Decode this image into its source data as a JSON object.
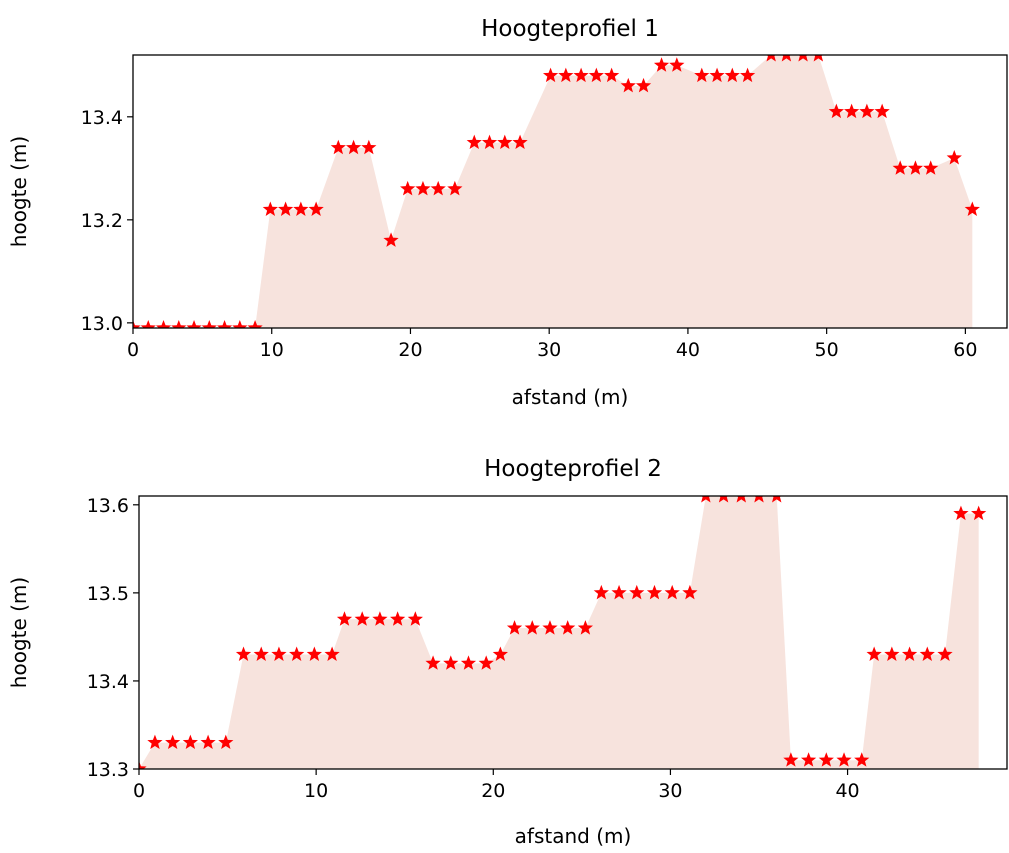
{
  "chart_data": [
    {
      "type": "area",
      "title": "Hoogteprofiel 1",
      "xlabel": "afstand (m)",
      "ylabel": "hoogte (m)",
      "xlim": [
        0,
        63
      ],
      "ylim": [
        12.99,
        13.52
      ],
      "xticks": [
        0,
        10,
        20,
        30,
        40,
        50,
        60
      ],
      "yticks": [
        13.0,
        13.2,
        13.4
      ],
      "ytick_labels": [
        "13.0",
        "13.2",
        "13.4"
      ],
      "marker": "star",
      "colors": {
        "marker": "#ff0000",
        "fill": "#f7e3dd",
        "axes": "#000000"
      },
      "x": [
        0,
        1.1,
        2.2,
        3.3,
        4.4,
        5.5,
        6.6,
        7.7,
        8.8,
        9.9,
        11.0,
        12.1,
        13.2,
        14.8,
        15.9,
        17.0,
        18.6,
        19.8,
        20.9,
        22.0,
        23.2,
        24.6,
        25.7,
        26.8,
        27.9,
        30.1,
        31.2,
        32.3,
        33.4,
        34.5,
        35.7,
        36.8,
        38.1,
        39.2,
        41.0,
        42.1,
        43.2,
        44.3,
        46.0,
        47.1,
        48.3,
        49.4,
        50.7,
        51.8,
        52.9,
        54.0,
        55.3,
        56.4,
        57.5,
        59.2,
        60.5
      ],
      "y": [
        12.99,
        12.99,
        12.99,
        12.99,
        12.99,
        12.99,
        12.99,
        12.99,
        12.99,
        13.22,
        13.22,
        13.22,
        13.22,
        13.34,
        13.34,
        13.34,
        13.16,
        13.26,
        13.26,
        13.26,
        13.26,
        13.35,
        13.35,
        13.35,
        13.35,
        13.48,
        13.48,
        13.48,
        13.48,
        13.48,
        13.46,
        13.46,
        13.5,
        13.5,
        13.48,
        13.48,
        13.48,
        13.48,
        13.52,
        13.52,
        13.52,
        13.52,
        13.41,
        13.41,
        13.41,
        13.41,
        13.3,
        13.3,
        13.3,
        13.32,
        13.22
      ]
    },
    {
      "type": "area",
      "title": "Hoogteprofiel 2",
      "xlabel": "afstand (m)",
      "ylabel": "hoogte (m)",
      "xlim": [
        0,
        49
      ],
      "ylim": [
        13.3,
        13.61
      ],
      "xticks": [
        0,
        10,
        20,
        30,
        40
      ],
      "yticks": [
        13.3,
        13.4,
        13.5,
        13.6
      ],
      "ytick_labels": [
        "13.3",
        "13.4",
        "13.5",
        "13.6"
      ],
      "marker": "star",
      "colors": {
        "marker": "#ff0000",
        "fill": "#f7e3dd",
        "axes": "#000000"
      },
      "x": [
        0,
        0.9,
        1.9,
        2.9,
        3.9,
        4.9,
        5.9,
        6.9,
        7.9,
        8.9,
        9.9,
        10.9,
        11.6,
        12.6,
        13.6,
        14.6,
        15.6,
        16.6,
        17.6,
        18.6,
        19.6,
        20.4,
        21.2,
        22.2,
        23.2,
        24.2,
        25.2,
        26.1,
        27.1,
        28.1,
        29.1,
        30.1,
        31.1,
        32.0,
        33.0,
        34.0,
        35.0,
        36.0,
        36.8,
        37.8,
        38.8,
        39.8,
        40.8,
        41.5,
        42.5,
        43.5,
        44.5,
        45.5,
        46.4,
        47.4
      ],
      "y": [
        13.3,
        13.33,
        13.33,
        13.33,
        13.33,
        13.33,
        13.43,
        13.43,
        13.43,
        13.43,
        13.43,
        13.43,
        13.47,
        13.47,
        13.47,
        13.47,
        13.47,
        13.42,
        13.42,
        13.42,
        13.42,
        13.43,
        13.46,
        13.46,
        13.46,
        13.46,
        13.46,
        13.5,
        13.5,
        13.5,
        13.5,
        13.5,
        13.5,
        13.61,
        13.61,
        13.61,
        13.61,
        13.61,
        13.31,
        13.31,
        13.31,
        13.31,
        13.31,
        13.43,
        13.43,
        13.43,
        13.43,
        13.43,
        13.59,
        13.59
      ]
    }
  ]
}
